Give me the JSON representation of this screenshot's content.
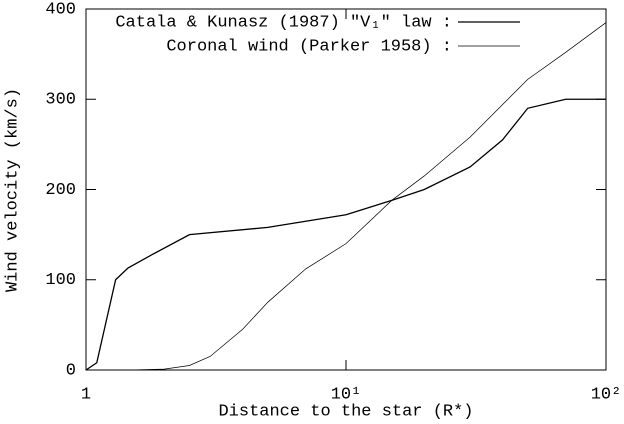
{
  "chart_data": {
    "type": "line",
    "xlabel": "Distance to the star (R*)",
    "ylabel": "Wind velocity (km/s)",
    "xscale": "log",
    "xlim": [
      1,
      100
    ],
    "ylim": [
      0,
      400
    ],
    "xticks": [
      {
        "value": 1,
        "label": "1"
      },
      {
        "value": 10,
        "label": "10¹"
      },
      {
        "value": 100,
        "label": "10²"
      }
    ],
    "yticks": [
      0,
      100,
      200,
      300,
      400
    ],
    "legend": "upper right",
    "series": [
      {
        "name": "Catala & Kunasz (1987) ″V₁″ law :",
        "color": "#000000",
        "width": 1.3,
        "x": [
          1,
          1.1,
          1.3,
          1.45,
          1.8,
          2.5,
          5,
          10,
          15,
          20,
          30,
          40,
          50,
          70,
          100
        ],
        "values": [
          0,
          8,
          100,
          113,
          128,
          150,
          158,
          172,
          188,
          200,
          225,
          255,
          290,
          300,
          300
        ]
      },
      {
        "name": "Coronal wind (Parker 1958) :",
        "color": "#000000",
        "width": 0.7,
        "x": [
          1,
          1.5,
          2,
          2.5,
          3,
          4,
          5,
          7,
          10,
          15,
          20,
          30,
          50,
          70,
          100
        ],
        "values": [
          0,
          0,
          1,
          5,
          15,
          45,
          75,
          112,
          140,
          188,
          215,
          258,
          322,
          352,
          385
        ]
      }
    ]
  }
}
